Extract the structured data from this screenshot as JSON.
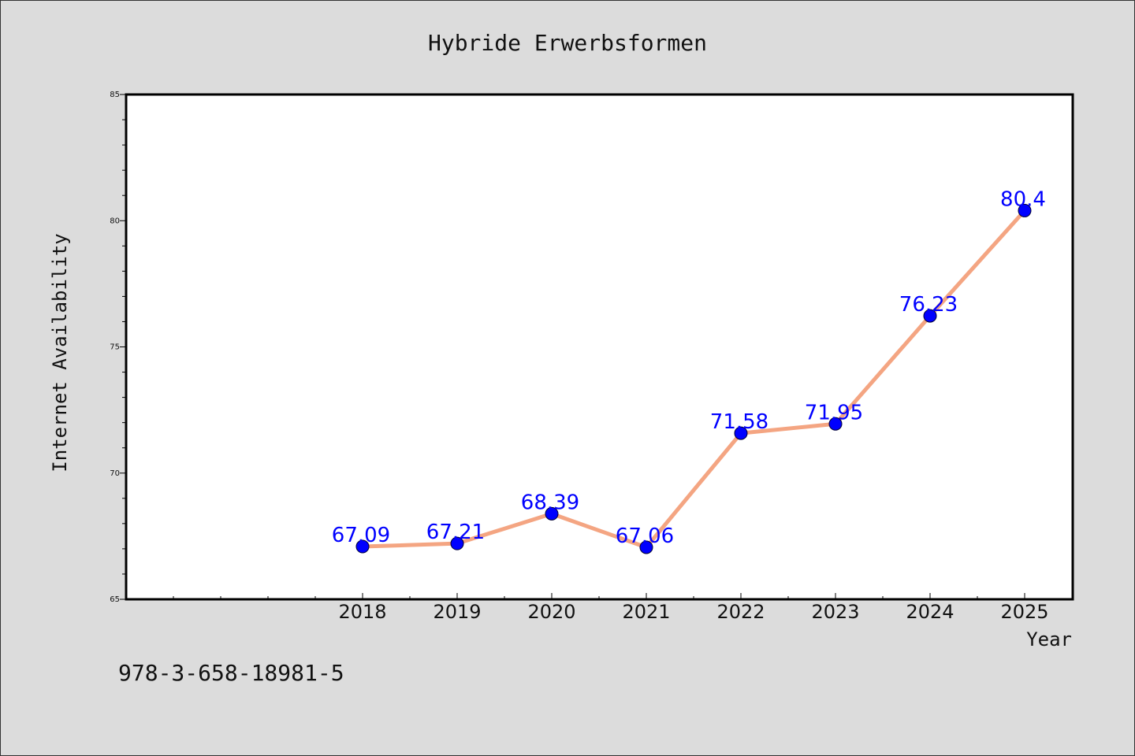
{
  "chart_data": {
    "type": "line",
    "title": "Hybride Erwerbsformen",
    "xlabel": "Year",
    "ylabel": "Internet Availability",
    "categories": [
      "2018",
      "2019",
      "2020",
      "2021",
      "2022",
      "2023",
      "2024",
      "2025"
    ],
    "series": [
      {
        "values": [
          67.09,
          67.21,
          68.39,
          67.06,
          71.58,
          71.95,
          76.23,
          80.4
        ],
        "labels": [
          "67.09",
          "67.21",
          "68.39",
          "67.06",
          "71.58",
          "71.95",
          "76.23",
          "80.4"
        ],
        "line_color": "#f4a582",
        "marker_color": "#0000ff",
        "label_color": "#0000ff"
      }
    ],
    "yticks": [
      "65",
      "70",
      "75",
      "80",
      "85"
    ],
    "ylim": [
      65,
      85
    ],
    "grid": false,
    "legend": "none"
  },
  "footer": {
    "text": "978-3-658-18981-5"
  }
}
